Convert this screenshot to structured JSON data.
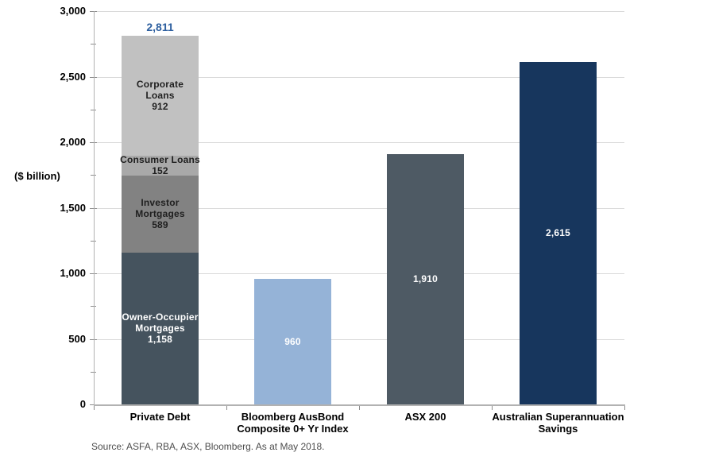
{
  "chart_data": {
    "type": "bar",
    "title": "",
    "ylabel": "($ billion)",
    "ylim": [
      0,
      3000
    ],
    "grid": "horizontal",
    "legend": "none",
    "yticks": [
      {
        "v": 0,
        "label": "0"
      },
      {
        "v": 500,
        "label": "500"
      },
      {
        "v": 1000,
        "label": "1,000"
      },
      {
        "v": 1500,
        "label": "1,500"
      },
      {
        "v": 2000,
        "label": "2,000"
      },
      {
        "v": 2500,
        "label": "2,500"
      },
      {
        "v": 3000,
        "label": "3,000"
      }
    ],
    "yticks_minor": [
      250,
      750,
      1250,
      1750,
      2250,
      2750
    ],
    "categories": [
      "Private Debt",
      "Bloomberg AusBond Composite 0+ Yr Index",
      "ASX 200",
      "Australian Superannuation Savings"
    ],
    "bars": [
      {
        "category_lines": [
          "Private Debt"
        ],
        "total": 2811,
        "total_label": "2,811",
        "total_label_color": "#2d5f9f",
        "segments": [
          {
            "name": "Owner-Occupier Mortgages",
            "value": 1158,
            "lines": [
              "Owner-Occupier",
              "Mortgages",
              "1,158"
            ],
            "color": "#45535e",
            "text_color": "#ffffff"
          },
          {
            "name": "Investor Mortgages",
            "value": 589,
            "lines": [
              "Investor",
              "Mortgages",
              "589"
            ],
            "color": "#828282",
            "text_color": "#1f1f1f"
          },
          {
            "name": "Consumer Loans",
            "value": 152,
            "lines": [
              "Consumer Loans",
              "152"
            ],
            "color": "#a9a9a9",
            "text_color": "#1f1f1f"
          },
          {
            "name": "Corporate Loans",
            "value": 912,
            "lines": [
              "Corporate",
              "Loans",
              "912"
            ],
            "color": "#c1c1c1",
            "text_color": "#1f1f1f"
          }
        ]
      },
      {
        "category_lines": [
          "Bloomberg AusBond",
          "Composite 0+ Yr Index"
        ],
        "segments": [
          {
            "name": "Bloomberg AusBond Composite 0+ Yr Index",
            "value": 960,
            "lines": [
              "960"
            ],
            "color": "#95b3d7",
            "text_color": "#ffffff"
          }
        ]
      },
      {
        "category_lines": [
          "ASX 200"
        ],
        "segments": [
          {
            "name": "ASX 200",
            "value": 1910,
            "lines": [
              "1,910"
            ],
            "color": "#4e5a64",
            "text_color": "#ffffff"
          }
        ]
      },
      {
        "category_lines": [
          "Australian Superannuation",
          "Savings"
        ],
        "segments": [
          {
            "name": "Australian Superannuation Savings",
            "value": 2615,
            "lines": [
              "2,615"
            ],
            "color": "#17365d",
            "text_color": "#ffffff"
          }
        ]
      }
    ],
    "source": "Source: ASFA, RBA, ASX, Bloomberg. As at May 2018.",
    "colors": {
      "gridline": "#d9d9d9",
      "axis_line": "#b2b2b2",
      "tick": "#8c8c8c",
      "tick_label": "#000000",
      "source_text": "#4d4d4d",
      "background": "#ffffff"
    }
  }
}
